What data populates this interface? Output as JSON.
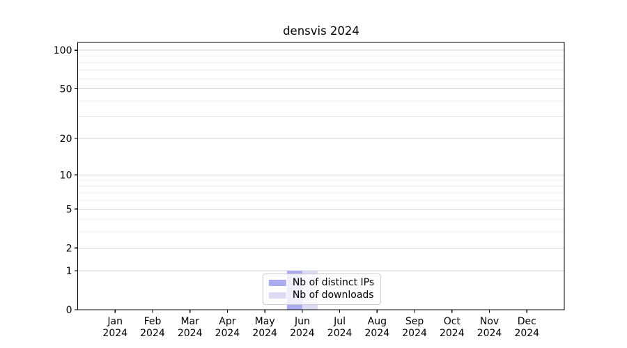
{
  "title": "densvis 2024",
  "chart_data": {
    "type": "bar",
    "title": "densvis 2024",
    "categories": [
      "Jan 2024",
      "Feb 2024",
      "Mar 2024",
      "Apr 2024",
      "May 2024",
      "Jun 2024",
      "Jul 2024",
      "Aug 2024",
      "Sep 2024",
      "Oct 2024",
      "Nov 2024",
      "Dec 2024"
    ],
    "series": [
      {
        "name": "Nb of distinct IPs",
        "color": "#aaaaef",
        "values": [
          0,
          0,
          0,
          0,
          0,
          1,
          0,
          0,
          0,
          0,
          0,
          0
        ]
      },
      {
        "name": "Nb of downloads",
        "color": "#dbdbf6",
        "values": [
          0,
          0,
          0,
          0,
          0,
          1,
          0,
          0,
          0,
          0,
          0,
          0
        ]
      }
    ],
    "xlabel": "",
    "ylabel": "",
    "y_axis": {
      "scale": "log1p",
      "major_ticks": [
        0,
        1,
        2,
        5,
        10,
        20,
        50,
        100
      ],
      "minor_gridlines": [
        3,
        4,
        6,
        7,
        8,
        9,
        30,
        40,
        60,
        70,
        80,
        90
      ],
      "ylim": [
        0,
        115
      ],
      "grid": true
    },
    "legend": {
      "position": "lower center"
    },
    "colors": {
      "major_grid": "#d2d2d2",
      "minor_grid": "#ececec",
      "axis": "#000000",
      "background": "#ffffff",
      "tick_text": "#000000"
    }
  }
}
